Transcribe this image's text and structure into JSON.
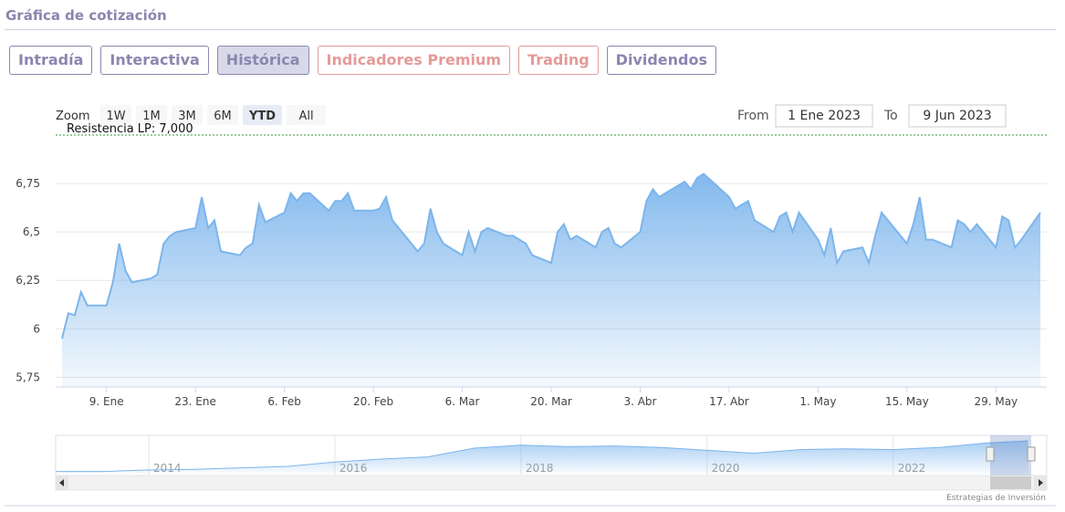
{
  "header": {
    "title": "Gráfica de cotización"
  },
  "tabs": [
    "Intradía",
    "Interactiva",
    "Histórica",
    "Indicadores Premium",
    "Trading",
    "Dividendos"
  ],
  "range_selector": {
    "zoom_label": "Zoom",
    "buttons": [
      "1W",
      "1M",
      "3M",
      "6M",
      "YTD",
      "All"
    ],
    "from_label": "From",
    "from_value": "1 Ene 2023",
    "to_label": "To",
    "to_value": "9 Jun 2023"
  },
  "credit": "Estrategias de Inversión",
  "chart_data": {
    "type": "area",
    "color": "#7cb5ec",
    "grid": true,
    "x": [
      "2023-01-02",
      "2023-01-03",
      "2023-01-04",
      "2023-01-05",
      "2023-01-06",
      "2023-01-09",
      "2023-01-10",
      "2023-01-11",
      "2023-01-12",
      "2023-01-13",
      "2023-01-16",
      "2023-01-17",
      "2023-01-18",
      "2023-01-19",
      "2023-01-20",
      "2023-01-23",
      "2023-01-24",
      "2023-01-25",
      "2023-01-26",
      "2023-01-27",
      "2023-01-30",
      "2023-01-31",
      "2023-02-01",
      "2023-02-02",
      "2023-02-03",
      "2023-02-06",
      "2023-02-07",
      "2023-02-08",
      "2023-02-09",
      "2023-02-10",
      "2023-02-13",
      "2023-02-14",
      "2023-02-15",
      "2023-02-16",
      "2023-02-17",
      "2023-02-20",
      "2023-02-21",
      "2023-02-22",
      "2023-02-23",
      "2023-02-24",
      "2023-02-27",
      "2023-02-28",
      "2023-03-01",
      "2023-03-02",
      "2023-03-03",
      "2023-03-06",
      "2023-03-07",
      "2023-03-08",
      "2023-03-09",
      "2023-03-10",
      "2023-03-13",
      "2023-03-14",
      "2023-03-15",
      "2023-03-16",
      "2023-03-17",
      "2023-03-20",
      "2023-03-21",
      "2023-03-22",
      "2023-03-23",
      "2023-03-24",
      "2023-03-27",
      "2023-03-28",
      "2023-03-29",
      "2023-03-30",
      "2023-03-31",
      "2023-04-03",
      "2023-04-04",
      "2023-04-05",
      "2023-04-06",
      "2023-04-10",
      "2023-04-11",
      "2023-04-12",
      "2023-04-13",
      "2023-04-14",
      "2023-04-17",
      "2023-04-18",
      "2023-04-19",
      "2023-04-20",
      "2023-04-21",
      "2023-04-24",
      "2023-04-25",
      "2023-04-26",
      "2023-04-27",
      "2023-04-28",
      "2023-05-01",
      "2023-05-02",
      "2023-05-03",
      "2023-05-04",
      "2023-05-05",
      "2023-05-08",
      "2023-05-09",
      "2023-05-10",
      "2023-05-11",
      "2023-05-12",
      "2023-05-15",
      "2023-05-16",
      "2023-05-17",
      "2023-05-18",
      "2023-05-19",
      "2023-05-22",
      "2023-05-23",
      "2023-05-24",
      "2023-05-25",
      "2023-05-26",
      "2023-05-29",
      "2023-05-30",
      "2023-05-31",
      "2023-06-01",
      "2023-06-02",
      "2023-06-05"
    ],
    "values": [
      5.95,
      6.08,
      6.07,
      6.19,
      6.12,
      6.12,
      6.24,
      6.44,
      6.3,
      6.24,
      6.26,
      6.28,
      6.44,
      6.48,
      6.5,
      6.52,
      6.68,
      6.52,
      6.56,
      6.4,
      6.38,
      6.42,
      6.44,
      6.64,
      6.55,
      6.6,
      6.7,
      6.66,
      6.7,
      6.7,
      6.61,
      6.66,
      6.66,
      6.7,
      6.61,
      6.61,
      6.62,
      6.68,
      6.56,
      6.52,
      6.4,
      6.44,
      6.62,
      6.5,
      6.44,
      6.38,
      6.5,
      6.4,
      6.5,
      6.52,
      6.48,
      6.48,
      6.46,
      6.44,
      6.38,
      6.34,
      6.5,
      6.54,
      6.46,
      6.48,
      6.42,
      6.5,
      6.52,
      6.44,
      6.42,
      6.5,
      6.66,
      6.72,
      6.68,
      6.76,
      6.72,
      6.78,
      6.8,
      6.77,
      6.68,
      6.62,
      6.64,
      6.66,
      6.56,
      6.5,
      6.58,
      6.6,
      6.5,
      6.6,
      6.46,
      6.38,
      6.52,
      6.34,
      6.4,
      6.42,
      6.34,
      6.48,
      6.6,
      6.56,
      6.44,
      6.54,
      6.68,
      6.46,
      6.46,
      6.42,
      6.56,
      6.54,
      6.5,
      6.54,
      6.42,
      6.58,
      6.56,
      6.42,
      6.46,
      6.6
    ],
    "xlim": [
      "2023-01-01",
      "2023-06-06"
    ],
    "xticks": [
      {
        "value": "2023-01-09",
        "label": "9. Ene"
      },
      {
        "value": "2023-01-23",
        "label": "23. Ene"
      },
      {
        "value": "2023-02-06",
        "label": "6. Feb"
      },
      {
        "value": "2023-02-20",
        "label": "20. Feb"
      },
      {
        "value": "2023-03-06",
        "label": "6. Mar"
      },
      {
        "value": "2023-03-20",
        "label": "20. Mar"
      },
      {
        "value": "2023-04-03",
        "label": "3. Abr"
      },
      {
        "value": "2023-04-17",
        "label": "17. Abr"
      },
      {
        "value": "2023-05-01",
        "label": "1. May"
      },
      {
        "value": "2023-05-15",
        "label": "15. May"
      },
      {
        "value": "2023-05-29",
        "label": "29. May"
      }
    ],
    "ylim": [
      5.7,
      7.0
    ],
    "yticks": [
      {
        "value": 5.75,
        "label": "5,75"
      },
      6,
      {
        "value": 6.25,
        "label": "6,25"
      },
      {
        "value": 6.5,
        "label": "6,5"
      },
      {
        "value": 6.75,
        "label": "6,75"
      }
    ],
    "plot_lines": [
      {
        "value": 7.0,
        "label": "Resistencia LP: 7,000",
        "color": "#3a9a3a"
      }
    ],
    "navigator": {
      "x": [
        2013,
        2013.5,
        2014,
        2014.5,
        2015,
        2015.5,
        2016,
        2016.5,
        2017,
        2017.5,
        2018,
        2018.5,
        2019,
        2019.5,
        2020,
        2020.5,
        2021,
        2021.5,
        2022,
        2022.5,
        2023,
        2023.45
      ],
      "values": [
        2.3,
        2.3,
        2.5,
        2.6,
        2.8,
        3.0,
        3.6,
        4.0,
        4.3,
        5.5,
        5.9,
        5.7,
        5.8,
        5.6,
        5.2,
        4.8,
        5.3,
        5.4,
        5.3,
        5.6,
        6.2,
        6.5
      ],
      "xlim": [
        2013,
        2023.65
      ],
      "ylim": [
        2,
        7
      ],
      "xticks": [
        2014,
        2016,
        2018,
        2020,
        2022
      ]
    }
  }
}
